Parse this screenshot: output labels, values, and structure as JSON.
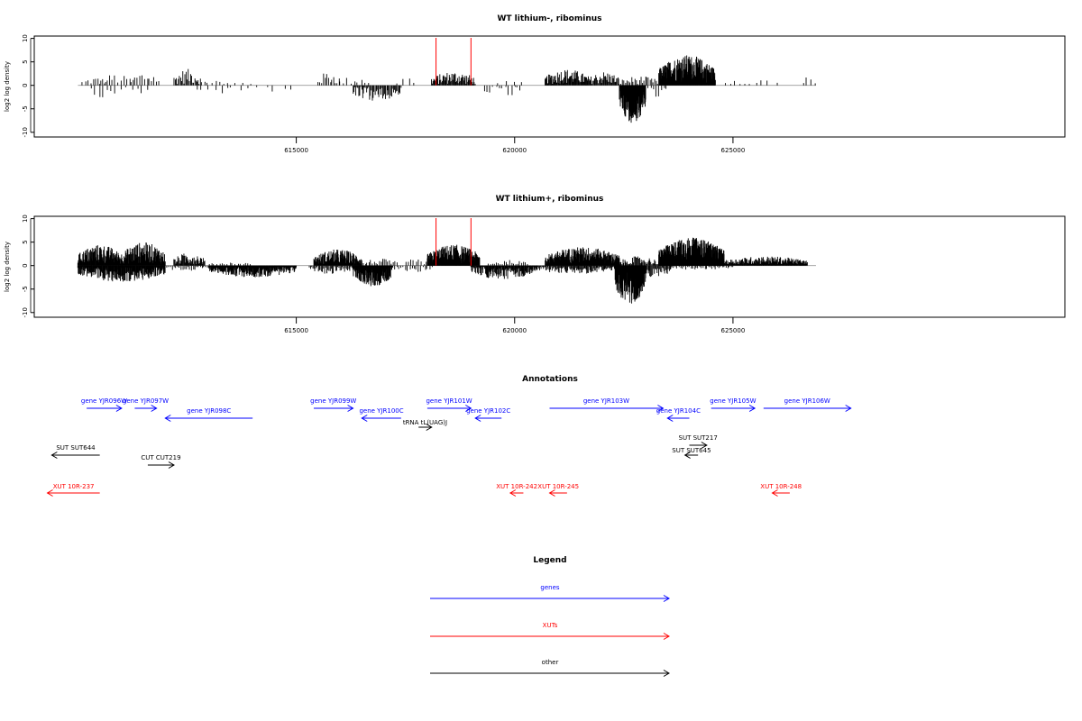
{
  "chart_data": [
    {
      "type": "bar",
      "title": "WT lithium-, ribominus",
      "xlabel": "",
      "ylabel": "log2 log density",
      "xlim": [
        609000,
        632600
      ],
      "ylim": [
        -11,
        10.5
      ],
      "x_ticks": [
        615000,
        620000,
        625000
      ],
      "x_tick_labels": [
        "615000",
        "620000",
        "625000"
      ],
      "y_ticks": [
        10,
        5,
        0,
        -5,
        -10
      ],
      "y_tick_labels": [
        "10",
        "5",
        "0",
        "-5",
        "-10"
      ],
      "markers": [
        618200,
        619000
      ],
      "bar_width": 10,
      "series": [
        {
          "sign": "pos",
          "segments": [
            {
              "x0": 610100,
              "x1": 610700,
              "amp": 1.8,
              "spacing": 62
            },
            {
              "x0": 610500,
              "x1": 611200,
              "amp": 2.5,
              "spacing": 70
            },
            {
              "x0": 611200,
              "x1": 611900,
              "amp": 3.0,
              "spacing": 55
            },
            {
              "x0": 612200,
              "x1": 612800,
              "amp": 3.5,
              "spacing": 25
            },
            {
              "x0": 612800,
              "x1": 613300,
              "amp": 1.5,
              "spacing": 90
            },
            {
              "x0": 613300,
              "x1": 614000,
              "amp": 0.8,
              "spacing": 160
            },
            {
              "x0": 615500,
              "x1": 616000,
              "amp": 3.0,
              "spacing": 40
            },
            {
              "x0": 616000,
              "x1": 616700,
              "amp": 2.0,
              "spacing": 80
            },
            {
              "x0": 617300,
              "x1": 617800,
              "amp": 2.0,
              "spacing": 140
            },
            {
              "x0": 618100,
              "x1": 619100,
              "amp": 3.0,
              "spacing": 16
            },
            {
              "x0": 619600,
              "x1": 620200,
              "amp": 1.0,
              "spacing": 180
            },
            {
              "x0": 620700,
              "x1": 621700,
              "amp": 3.5,
              "spacing": 13
            },
            {
              "x0": 621700,
              "x1": 622400,
              "amp": 3.0,
              "spacing": 18
            },
            {
              "x0": 622400,
              "x1": 623300,
              "amp": 2.0,
              "spacing": 35
            },
            {
              "x0": 623300,
              "x1": 624600,
              "amp": 6.5,
              "spacing": 6
            },
            {
              "x0": 624800,
              "x1": 625500,
              "amp": 2.0,
              "spacing": 120
            },
            {
              "x0": 625500,
              "x1": 626000,
              "amp": 1.5,
              "spacing": 160
            },
            {
              "x0": 626600,
              "x1": 626900,
              "amp": 2.5,
              "spacing": 100
            }
          ]
        },
        {
          "sign": "neg",
          "segments": [
            {
              "x0": 610300,
              "x1": 610900,
              "amp": 2.8,
              "spacing": 90
            },
            {
              "x0": 611000,
              "x1": 611700,
              "amp": 2.0,
              "spacing": 120
            },
            {
              "x0": 612700,
              "x1": 613500,
              "amp": 2.0,
              "spacing": 150
            },
            {
              "x0": 613500,
              "x1": 615000,
              "amp": 1.5,
              "spacing": 200
            },
            {
              "x0": 616300,
              "x1": 617400,
              "amp": 3.5,
              "spacing": 22
            },
            {
              "x0": 619300,
              "x1": 620200,
              "amp": 2.5,
              "spacing": 70
            },
            {
              "x0": 622400,
              "x1": 623000,
              "amp": 8.0,
              "spacing": 5
            },
            {
              "x0": 623000,
              "x1": 623500,
              "amp": 2.5,
              "spacing": 60
            }
          ]
        }
      ]
    },
    {
      "type": "bar",
      "title": "WT lithium+, ribominus",
      "xlabel": "",
      "ylabel": "log2 log density",
      "xlim": [
        609000,
        632600
      ],
      "ylim": [
        -11,
        10.5
      ],
      "x_ticks": [
        615000,
        620000,
        625000
      ],
      "x_tick_labels": [
        "615000",
        "620000",
        "625000"
      ],
      "y_ticks": [
        10,
        5,
        0,
        -5,
        -10
      ],
      "y_tick_labels": [
        "10",
        "5",
        "0",
        "-5",
        "-10"
      ],
      "markers": [
        618200,
        619000
      ],
      "bar_width": 10,
      "series": [
        {
          "sign": "pos",
          "segments": [
            {
              "x0": 610000,
              "x1": 611000,
              "amp": 4.5,
              "spacing": 8
            },
            {
              "x0": 611000,
              "x1": 612000,
              "amp": 5.0,
              "spacing": 8
            },
            {
              "x0": 612200,
              "x1": 612900,
              "amp": 2.8,
              "spacing": 14
            },
            {
              "x0": 613000,
              "x1": 614000,
              "amp": 0.8,
              "spacing": 60
            },
            {
              "x0": 615400,
              "x1": 616500,
              "amp": 3.5,
              "spacing": 9
            },
            {
              "x0": 616500,
              "x1": 617300,
              "amp": 1.5,
              "spacing": 40
            },
            {
              "x0": 617500,
              "x1": 618000,
              "amp": 1.5,
              "spacing": 60
            },
            {
              "x0": 618000,
              "x1": 619200,
              "amp": 4.5,
              "spacing": 7
            },
            {
              "x0": 619400,
              "x1": 620300,
              "amp": 1.2,
              "spacing": 45
            },
            {
              "x0": 620700,
              "x1": 622400,
              "amp": 4.0,
              "spacing": 6
            },
            {
              "x0": 622400,
              "x1": 623300,
              "amp": 2.0,
              "spacing": 20
            },
            {
              "x0": 623300,
              "x1": 624800,
              "amp": 6.0,
              "spacing": 4
            },
            {
              "x0": 624800,
              "x1": 626700,
              "amp": 2.0,
              "spacing": 10
            }
          ]
        },
        {
          "sign": "neg",
          "segments": [
            {
              "x0": 610000,
              "x1": 612000,
              "amp": 3.5,
              "spacing": 9
            },
            {
              "x0": 612000,
              "x1": 613000,
              "amp": 1.2,
              "spacing": 40
            },
            {
              "x0": 613000,
              "x1": 615000,
              "amp": 2.5,
              "spacing": 9
            },
            {
              "x0": 615300,
              "x1": 616300,
              "amp": 1.8,
              "spacing": 25
            },
            {
              "x0": 616300,
              "x1": 617200,
              "amp": 4.5,
              "spacing": 7
            },
            {
              "x0": 617200,
              "x1": 618100,
              "amp": 1.5,
              "spacing": 50
            },
            {
              "x0": 619000,
              "x1": 620500,
              "amp": 3.0,
              "spacing": 12
            },
            {
              "x0": 620500,
              "x1": 622300,
              "amp": 1.8,
              "spacing": 18
            },
            {
              "x0": 622300,
              "x1": 623000,
              "amp": 8.5,
              "spacing": 4
            },
            {
              "x0": 623000,
              "x1": 623600,
              "amp": 3.0,
              "spacing": 20
            },
            {
              "x0": 623600,
              "x1": 625000,
              "amp": 1.0,
              "spacing": 40
            }
          ]
        }
      ]
    }
  ],
  "annotations": {
    "title": "Annotations",
    "features": [
      {
        "label": "gene YJR096W",
        "x0": 610200,
        "x1": 611000,
        "dir": "right",
        "row": 0,
        "color": "#0000ff"
      },
      {
        "label": "gene YJR097W",
        "x0": 611300,
        "x1": 611800,
        "dir": "right",
        "row": 0,
        "color": "#0000ff"
      },
      {
        "label": "gene YJR098C",
        "x0": 612000,
        "x1": 614000,
        "dir": "left",
        "row": 1,
        "color": "#0000ff"
      },
      {
        "label": "gene YJR099W",
        "x0": 615400,
        "x1": 616300,
        "dir": "right",
        "row": 0,
        "color": "#0000ff"
      },
      {
        "label": "gene YJR100C",
        "x0": 616500,
        "x1": 617400,
        "dir": "left",
        "row": 1,
        "color": "#0000ff"
      },
      {
        "label": "tRNA tL(UAG)J",
        "x0": 617800,
        "x1": 618100,
        "dir": "right",
        "row": 2,
        "color": "#000000"
      },
      {
        "label": "gene YJR101W",
        "x0": 618000,
        "x1": 619000,
        "dir": "right",
        "row": 0,
        "color": "#0000ff"
      },
      {
        "label": "gene YJR102C",
        "x0": 619100,
        "x1": 619700,
        "dir": "left",
        "row": 1,
        "color": "#0000ff"
      },
      {
        "label": "gene YJR103W",
        "x0": 620800,
        "x1": 623400,
        "dir": "right",
        "row": 0,
        "color": "#0000ff"
      },
      {
        "label": "gene YJR104C",
        "x0": 623500,
        "x1": 624000,
        "dir": "left",
        "row": 1,
        "color": "#0000ff"
      },
      {
        "label": "gene YJR105W",
        "x0": 624500,
        "x1": 625500,
        "dir": "right",
        "row": 0,
        "color": "#0000ff"
      },
      {
        "label": "gene YJR106W",
        "x0": 625700,
        "x1": 627700,
        "dir": "right",
        "row": 0,
        "color": "#0000ff"
      },
      {
        "label": "SUT SUT644",
        "x0": 609400,
        "x1": 610500,
        "dir": "left",
        "row": 3,
        "color": "#000000"
      },
      {
        "label": "SUT SUT217",
        "x0": 624000,
        "x1": 624400,
        "dir": "right",
        "row": 4,
        "color": "#000000"
      },
      {
        "label": "SUT SUT645",
        "x0": 623900,
        "x1": 624200,
        "dir": "left",
        "row": 5,
        "color": "#000000"
      },
      {
        "label": "CUT CUT219",
        "x0": 611600,
        "x1": 612200,
        "dir": "right",
        "row": 6,
        "color": "#000000"
      },
      {
        "label": "XUT 10R-237",
        "x0": 609300,
        "x1": 610500,
        "dir": "left",
        "row": 7,
        "color": "#ff0000"
      },
      {
        "label": "XUT 10R-242",
        "x0": 619900,
        "x1": 620200,
        "dir": "left",
        "row": 7,
        "color": "#ff0000"
      },
      {
        "label": "XUT 10R-245",
        "x0": 620800,
        "x1": 621200,
        "dir": "left",
        "row": 7,
        "color": "#ff0000"
      },
      {
        "label": "XUT 10R-248",
        "x0": 625900,
        "x1": 626300,
        "dir": "left",
        "row": 7,
        "color": "#ff0000"
      }
    ]
  },
  "legend": {
    "title": "Legend",
    "items": [
      {
        "label": "genes",
        "color": "#0000ff"
      },
      {
        "label": "XUTs",
        "color": "#ff0000"
      },
      {
        "label": "other",
        "color": "#000000"
      }
    ]
  }
}
